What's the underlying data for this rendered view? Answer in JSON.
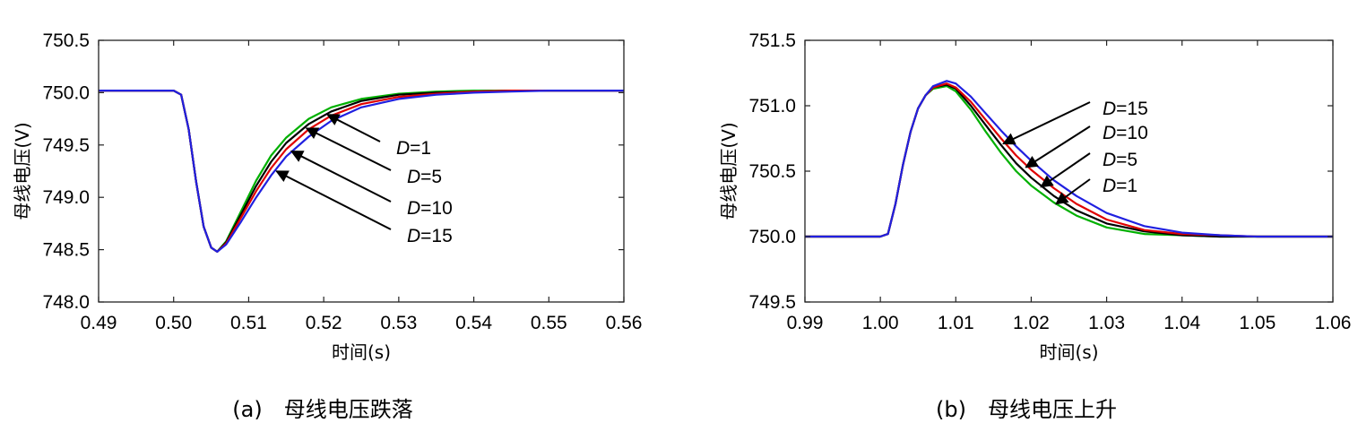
{
  "chart_data": [
    {
      "type": "line",
      "caption": "(a)　母线电压跌落",
      "xlabel": "时间(s)",
      "ylabel": "母线电压(V)",
      "xlim": [
        0.49,
        0.56
      ],
      "ylim": [
        748.0,
        750.5
      ],
      "xticks": [
        0.49,
        0.5,
        0.51,
        0.52,
        0.53,
        0.54,
        0.55,
        0.56
      ],
      "xtick_labels": [
        "0.49",
        "0.50",
        "0.51",
        "0.52",
        "0.53",
        "0.54",
        "0.55",
        "0.56"
      ],
      "yticks": [
        748.0,
        748.5,
        749.0,
        749.5,
        750.0,
        750.5
      ],
      "ytick_labels": [
        "748.0",
        "748.5",
        "749.0",
        "749.5",
        "750.0",
        "750.5"
      ],
      "grid": false,
      "legend": "none",
      "series": [
        {
          "color": "#00b000",
          "x": [
            0.49,
            0.5,
            0.501,
            0.502,
            0.503,
            0.504,
            0.505,
            0.5058,
            0.507,
            0.509,
            0.511,
            0.513,
            0.515,
            0.518,
            0.521,
            0.525,
            0.53,
            0.535,
            0.54,
            0.545,
            0.55,
            0.56
          ],
          "y": [
            750.02,
            750.02,
            749.98,
            749.65,
            749.15,
            748.72,
            748.52,
            748.48,
            748.58,
            748.87,
            749.16,
            749.4,
            749.57,
            749.75,
            749.86,
            749.94,
            749.99,
            750.01,
            750.02,
            750.02,
            750.02,
            750.02
          ]
        },
        {
          "color": "#000000",
          "x": [
            0.49,
            0.5,
            0.501,
            0.502,
            0.503,
            0.504,
            0.505,
            0.5058,
            0.507,
            0.509,
            0.511,
            0.513,
            0.515,
            0.518,
            0.521,
            0.525,
            0.53,
            0.535,
            0.54,
            0.545,
            0.55,
            0.56
          ],
          "y": [
            750.02,
            750.02,
            749.98,
            749.65,
            749.15,
            748.72,
            748.52,
            748.48,
            748.57,
            748.84,
            749.11,
            749.34,
            749.52,
            749.7,
            749.82,
            749.92,
            749.98,
            750.0,
            750.01,
            750.02,
            750.02,
            750.02
          ]
        },
        {
          "color": "#e00000",
          "x": [
            0.49,
            0.5,
            0.501,
            0.502,
            0.503,
            0.504,
            0.505,
            0.5058,
            0.507,
            0.509,
            0.511,
            0.513,
            0.515,
            0.518,
            0.521,
            0.525,
            0.53,
            0.535,
            0.54,
            0.545,
            0.55,
            0.56
          ],
          "y": [
            750.02,
            750.02,
            749.98,
            749.65,
            749.15,
            748.72,
            748.52,
            748.48,
            748.56,
            748.81,
            749.06,
            749.28,
            749.46,
            749.65,
            749.78,
            749.89,
            749.96,
            749.99,
            750.01,
            750.02,
            750.02,
            750.02
          ]
        },
        {
          "color": "#2020e0",
          "x": [
            0.49,
            0.5,
            0.501,
            0.502,
            0.503,
            0.504,
            0.505,
            0.5058,
            0.507,
            0.509,
            0.511,
            0.513,
            0.515,
            0.518,
            0.521,
            0.525,
            0.53,
            0.535,
            0.54,
            0.545,
            0.55,
            0.56
          ],
          "y": [
            750.02,
            750.02,
            749.98,
            749.65,
            749.15,
            748.72,
            748.52,
            748.48,
            748.55,
            748.77,
            749.0,
            749.21,
            749.39,
            749.58,
            749.73,
            749.86,
            749.94,
            749.98,
            750.0,
            750.01,
            750.02,
            750.02
          ]
        }
      ],
      "annotations": [
        {
          "label": "=1",
          "italic": "D",
          "x": 0.5205,
          "y": 749.79
        },
        {
          "label": "=5",
          "italic": "D",
          "x": 0.5177,
          "y": 749.66
        },
        {
          "label": "=10",
          "italic": "D",
          "x": 0.5157,
          "y": 749.44
        },
        {
          "label": "=15",
          "italic": "D",
          "x": 0.5137,
          "y": 749.25
        }
      ]
    },
    {
      "type": "line",
      "caption": "(b)　母线电压上升",
      "xlabel": "时间(s)",
      "ylabel": "母线电压(V)",
      "xlim": [
        0.99,
        1.06
      ],
      "ylim": [
        749.5,
        751.5
      ],
      "xticks": [
        0.99,
        1.0,
        1.01,
        1.02,
        1.03,
        1.04,
        1.05,
        1.06
      ],
      "xtick_labels": [
        "0.99",
        "1.00",
        "1.01",
        "1.02",
        "1.03",
        "1.04",
        "1.05",
        "1.06"
      ],
      "yticks": [
        749.5,
        750.0,
        750.5,
        751.0,
        751.5
      ],
      "ytick_labels": [
        "749.5",
        "750.0",
        "750.5",
        "751.0",
        "751.5"
      ],
      "grid": false,
      "legend": "none",
      "series": [
        {
          "color": "#00b000",
          "x": [
            0.99,
            1.0,
            1.001,
            1.002,
            1.003,
            1.004,
            1.005,
            1.006,
            1.007,
            1.0088,
            1.01,
            1.012,
            1.014,
            1.016,
            1.018,
            1.02,
            1.023,
            1.026,
            1.03,
            1.035,
            1.04,
            1.045,
            1.05,
            1.06
          ],
          "y": [
            750.0,
            750.0,
            750.02,
            750.25,
            750.55,
            750.8,
            750.98,
            751.08,
            751.13,
            751.15,
            751.11,
            750.97,
            750.8,
            750.64,
            750.5,
            750.39,
            750.26,
            750.16,
            750.07,
            750.02,
            750.01,
            750.0,
            750.0,
            750.0
          ]
        },
        {
          "color": "#000000",
          "x": [
            0.99,
            1.0,
            1.001,
            1.002,
            1.003,
            1.004,
            1.005,
            1.006,
            1.007,
            1.0088,
            1.01,
            1.012,
            1.014,
            1.016,
            1.018,
            1.02,
            1.023,
            1.026,
            1.03,
            1.035,
            1.04,
            1.045,
            1.05,
            1.06
          ],
          "y": [
            750.0,
            750.0,
            750.02,
            750.25,
            750.55,
            750.8,
            750.98,
            751.08,
            751.14,
            751.16,
            751.13,
            751.0,
            750.85,
            750.7,
            750.56,
            750.45,
            750.31,
            750.2,
            750.1,
            750.04,
            750.01,
            750.0,
            750.0,
            750.0
          ]
        },
        {
          "color": "#e00000",
          "x": [
            0.99,
            1.0,
            1.001,
            1.002,
            1.003,
            1.004,
            1.005,
            1.006,
            1.007,
            1.0088,
            1.01,
            1.012,
            1.014,
            1.016,
            1.018,
            1.02,
            1.023,
            1.026,
            1.03,
            1.035,
            1.04,
            1.045,
            1.05,
            1.06
          ],
          "y": [
            750.0,
            750.0,
            750.02,
            750.25,
            750.55,
            750.8,
            750.98,
            751.08,
            751.14,
            751.17,
            751.14,
            751.03,
            750.89,
            750.75,
            750.62,
            750.51,
            750.37,
            750.25,
            750.13,
            750.05,
            750.02,
            750.01,
            750.0,
            750.0
          ]
        },
        {
          "color": "#2020e0",
          "x": [
            0.99,
            1.0,
            1.001,
            1.002,
            1.003,
            1.004,
            1.005,
            1.006,
            1.007,
            1.0088,
            1.01,
            1.012,
            1.014,
            1.016,
            1.018,
            1.02,
            1.023,
            1.026,
            1.03,
            1.035,
            1.04,
            1.045,
            1.05,
            1.06
          ],
          "y": [
            750.0,
            750.0,
            750.02,
            750.25,
            750.55,
            750.8,
            750.98,
            751.08,
            751.15,
            751.19,
            751.17,
            751.07,
            750.94,
            750.81,
            750.69,
            750.58,
            750.43,
            750.31,
            750.18,
            750.08,
            750.03,
            750.01,
            750.0,
            750.0
          ]
        }
      ],
      "annotations": [
        {
          "label": "=15",
          "italic": "D",
          "x": 1.0163,
          "y": 750.71
        },
        {
          "label": "=10",
          "italic": "D",
          "x": 1.0193,
          "y": 750.53
        },
        {
          "label": "=5",
          "italic": "D",
          "x": 1.0213,
          "y": 750.38
        },
        {
          "label": "=1",
          "italic": "D",
          "x": 1.0233,
          "y": 750.25
        }
      ]
    }
  ]
}
